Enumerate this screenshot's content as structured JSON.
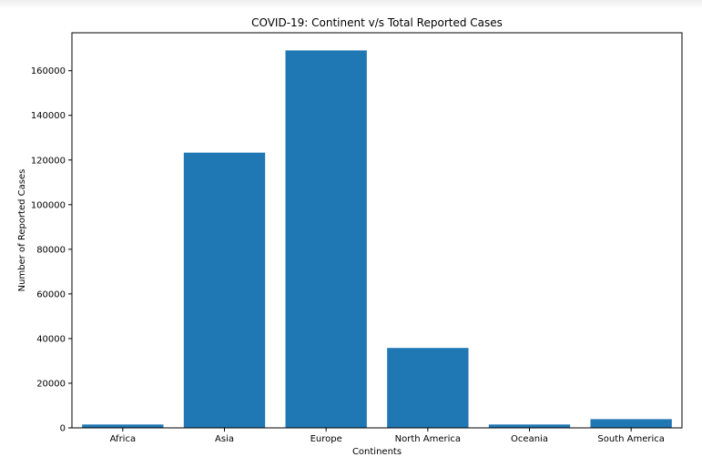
{
  "chart_data": {
    "type": "bar",
    "title": "COVID-19: Continent v/s Total Reported Cases",
    "xlabel": "Continents",
    "ylabel": "Number of Reported Cases",
    "categories": [
      "Africa",
      "Asia",
      "Europe",
      "North America",
      "Oceania",
      "South America"
    ],
    "values": [
      1500,
      123300,
      169100,
      35800,
      1500,
      3900
    ],
    "ylim": [
      0,
      177000
    ],
    "yticks": [
      0,
      20000,
      40000,
      60000,
      80000,
      100000,
      120000,
      140000,
      160000
    ],
    "bar_color": "#1f77b4",
    "grid": false
  }
}
